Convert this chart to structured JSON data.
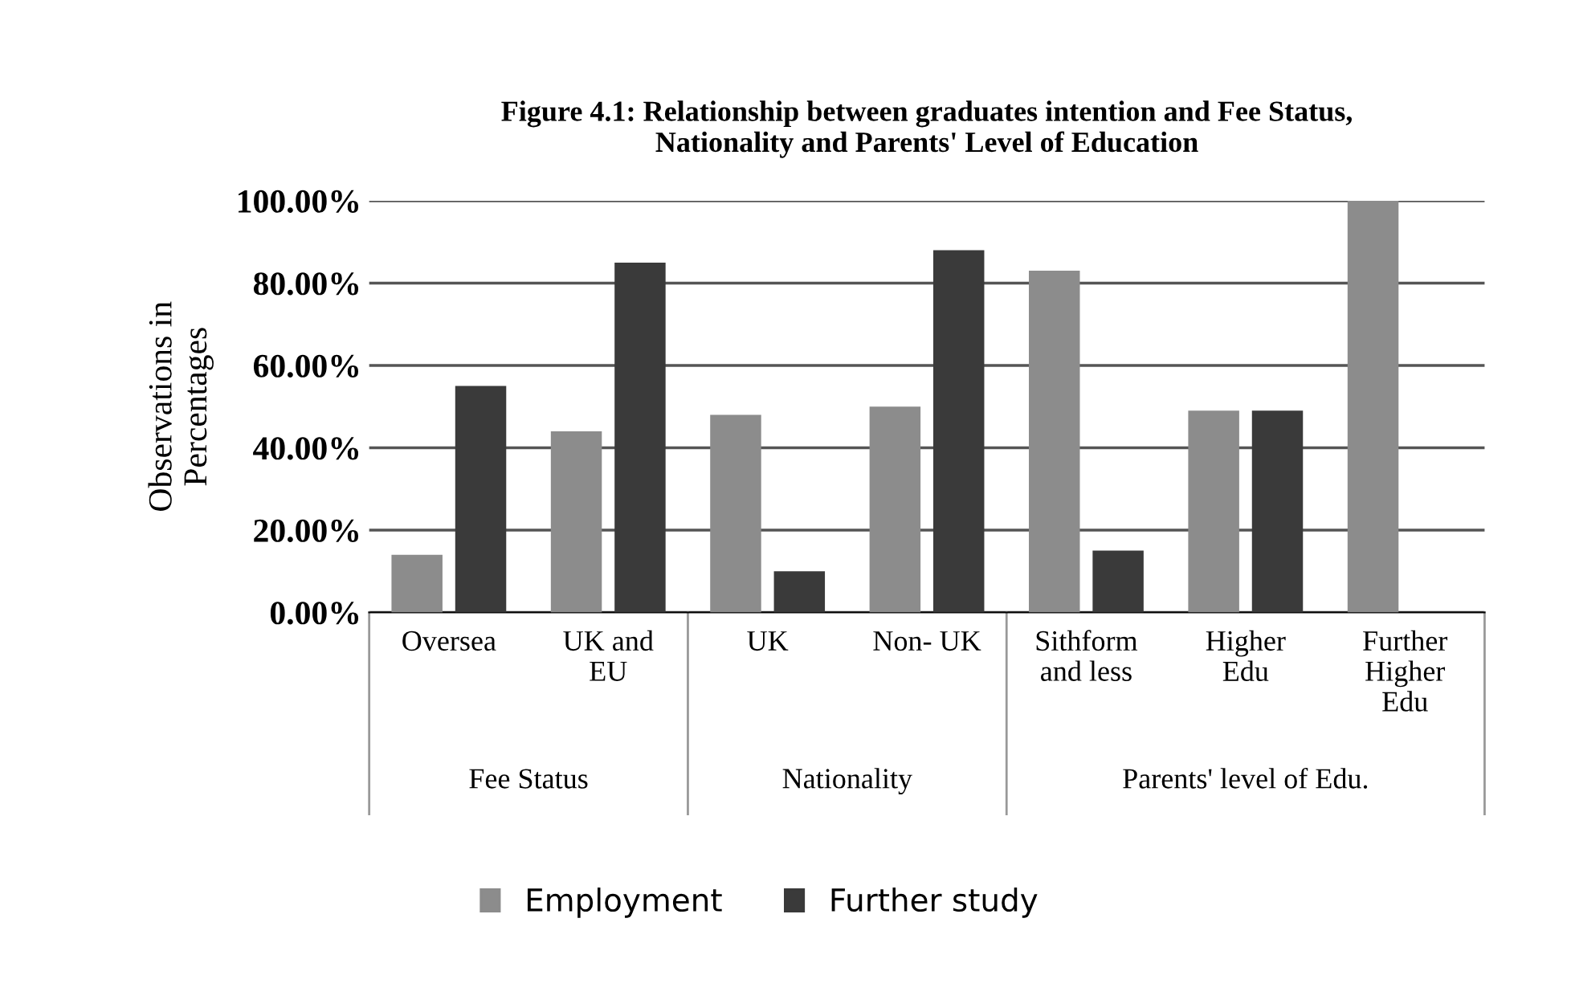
{
  "chart_data": {
    "type": "bar",
    "title": "Figure 4.1: Relationship between graduates intention and Fee Status,\nNationality and Parents' Level of Education",
    "ylabel": "Observations in\nPercentages",
    "categories": [
      "Oversea",
      "UK and\nEU",
      "UK",
      "Non- UK",
      "Sithform\nand less",
      "Higher\nEdu",
      "Further\nHigher\nEdu"
    ],
    "series": [
      {
        "name": "Employment",
        "color": "#8c8c8c",
        "values": [
          14,
          44,
          48,
          50,
          83,
          49,
          100
        ]
      },
      {
        "name": "Further study",
        "color": "#3a3a3a",
        "values": [
          55,
          85,
          10,
          88,
          15,
          49,
          0
        ]
      }
    ],
    "ylim": [
      0,
      100
    ],
    "yticks": [
      {
        "value": 0,
        "label": "0.00%"
      },
      {
        "value": 20,
        "label": "20.00%"
      },
      {
        "value": 40,
        "label": "40.00%"
      },
      {
        "value": 60,
        "label": "60.00%"
      },
      {
        "value": 80,
        "label": "80.00%"
      },
      {
        "value": 100,
        "label": "100.00%"
      }
    ],
    "annotations": [
      "Fee Status",
      "Nationality",
      "Parents' level of Edu."
    ],
    "grid": "y",
    "legend": "bottom"
  }
}
